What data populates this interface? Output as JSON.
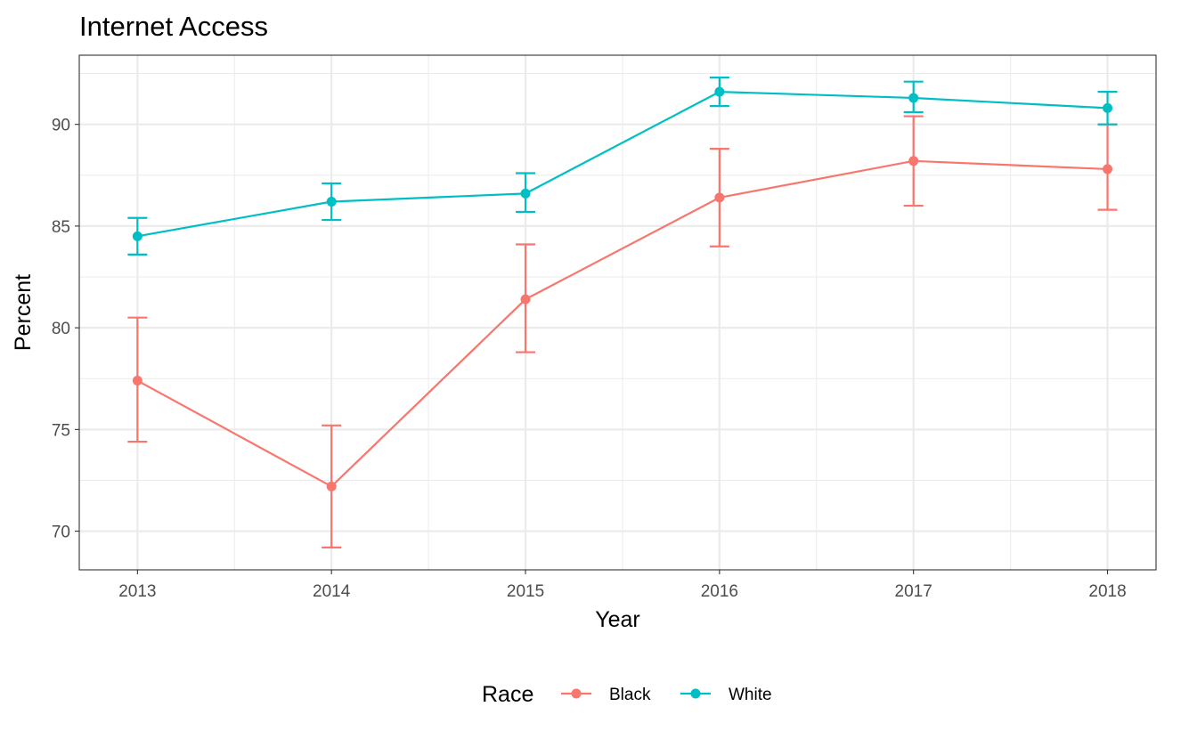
{
  "chart_data": {
    "type": "line",
    "title": "Internet Access",
    "xlabel": "Year",
    "ylabel": "Percent",
    "x": [
      2013,
      2014,
      2015,
      2016,
      2017,
      2018
    ],
    "x_tick_labels": [
      "2013",
      "2014",
      "2015",
      "2016",
      "2017",
      "2018"
    ],
    "y_ticks": [
      70,
      75,
      80,
      85,
      90
    ],
    "y_tick_labels": [
      "70",
      "75",
      "80",
      "85",
      "90"
    ],
    "xlim": [
      2012.7,
      2018.25
    ],
    "ylim": [
      68.1,
      93.4
    ],
    "grid": true,
    "error_bars": true,
    "legend": {
      "title": "Race",
      "position": "bottom"
    },
    "series": [
      {
        "name": "Black",
        "color": "#F8766D",
        "values": [
          77.4,
          72.2,
          81.4,
          86.4,
          88.2,
          87.8
        ],
        "lower": [
          74.4,
          69.2,
          78.8,
          84.0,
          86.0,
          85.8
        ],
        "upper": [
          80.5,
          75.2,
          84.1,
          88.8,
          90.4,
          90.0
        ]
      },
      {
        "name": "White",
        "color": "#00BFC4",
        "values": [
          84.5,
          86.2,
          86.6,
          91.6,
          91.3,
          90.8
        ],
        "lower": [
          83.6,
          85.3,
          85.7,
          90.9,
          90.6,
          90.0
        ],
        "upper": [
          85.4,
          87.1,
          87.6,
          92.3,
          92.1,
          91.6
        ]
      }
    ]
  }
}
